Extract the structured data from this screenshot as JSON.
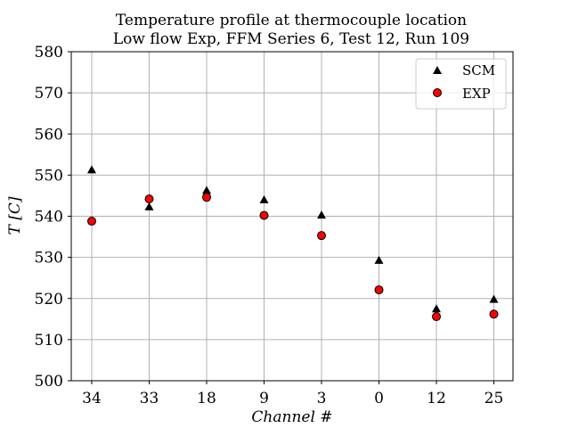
{
  "chart_data": {
    "type": "scatter",
    "title": "Temperature profile at thermocouple location",
    "subtitle": "Low flow Exp, FFM Series 6, Test 12, Run 109",
    "xlabel": "Channel #",
    "ylabel": "T [C]",
    "categories": [
      "34",
      "33",
      "18",
      "9",
      "3",
      "0",
      "12",
      "25"
    ],
    "ylim": [
      500,
      580
    ],
    "yticks": [
      "500",
      "510",
      "520",
      "530",
      "540",
      "550",
      "560",
      "570",
      "580"
    ],
    "grid": true,
    "legend_position": "top-right",
    "series": [
      {
        "name": "SCM",
        "marker": "triangle",
        "color": "#000000",
        "values": [
          551.3,
          542.3,
          546.3,
          544.0,
          540.3,
          529.3,
          517.5,
          519.8
        ]
      },
      {
        "name": "EXP",
        "marker": "circle",
        "color": "#ff0000",
        "edge_color": "#000000",
        "values": [
          538.8,
          544.2,
          544.6,
          540.2,
          535.3,
          522.1,
          515.6,
          516.2
        ]
      }
    ]
  }
}
